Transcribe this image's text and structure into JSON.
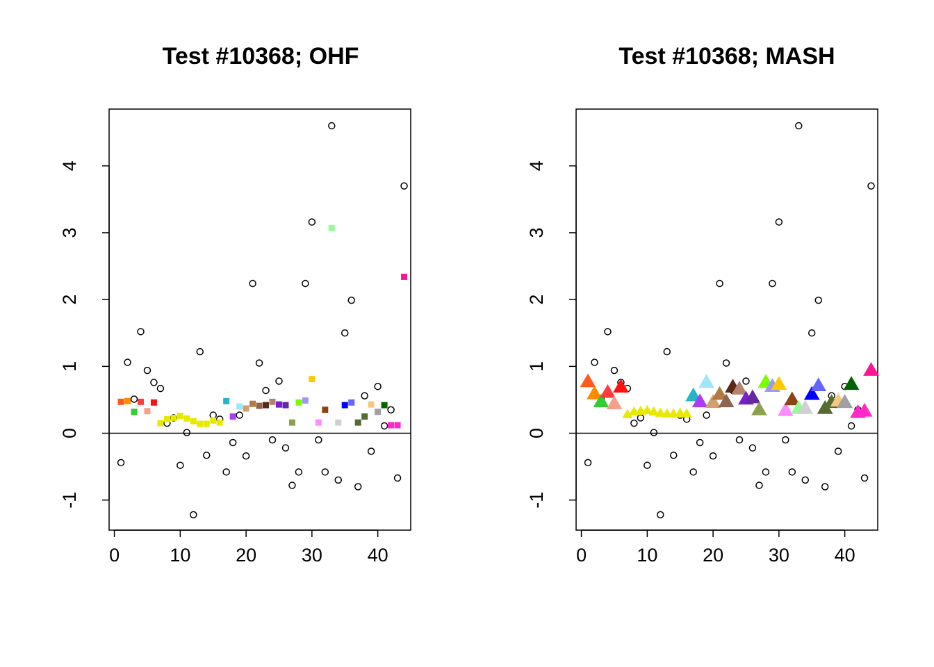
{
  "chart_data": [
    {
      "type": "scatter",
      "title": "Test #10368; OHF",
      "xlabel": "",
      "ylabel": "",
      "xlim": [
        -0.8,
        45
      ],
      "ylim": [
        -1.45,
        4.85
      ],
      "x_ticks": [
        0,
        10,
        20,
        30,
        40
      ],
      "y_ticks": [
        -1,
        0,
        1,
        2,
        3,
        4
      ],
      "x_tick_labels": [
        "0",
        "10",
        "20",
        "30",
        "40"
      ],
      "y_tick_labels": [
        "-1",
        "0",
        "1",
        "2",
        "3",
        "4"
      ],
      "hline": 0,
      "grid": false,
      "series": [
        {
          "marker": "open-circle",
          "x": [
            1,
            2,
            3,
            4,
            5,
            6,
            7,
            8,
            9,
            10,
            11,
            12,
            13,
            14,
            15,
            16,
            17,
            18,
            19,
            20,
            21,
            22,
            23,
            24,
            25,
            26,
            27,
            28,
            29,
            30,
            31,
            32,
            33,
            34,
            35,
            36,
            37,
            38,
            39,
            40,
            41,
            42,
            43,
            44
          ],
          "values": [
            -0.44,
            1.06,
            0.51,
            1.52,
            0.94,
            0.76,
            0.67,
            0.15,
            0.23,
            -0.48,
            0.01,
            -1.22,
            1.22,
            -0.33,
            0.27,
            0.21,
            -0.58,
            -0.14,
            0.27,
            -0.34,
            2.24,
            1.05,
            0.64,
            -0.1,
            0.78,
            -0.22,
            -0.78,
            -0.58,
            2.24,
            3.16,
            -0.1,
            -0.58,
            4.6,
            -0.7,
            1.5,
            1.99,
            -0.8,
            0.56,
            -0.27,
            0.7,
            0.11,
            0.35,
            -0.67,
            3.7
          ]
        },
        {
          "marker": "filled-square",
          "x": [
            1,
            2,
            3,
            4,
            5,
            6,
            7,
            8,
            9,
            10,
            11,
            12,
            13,
            14,
            15,
            16,
            17,
            18,
            19,
            20,
            21,
            22,
            23,
            24,
            25,
            26,
            27,
            28,
            29,
            30,
            31,
            32,
            33,
            34,
            35,
            36,
            37,
            38,
            39,
            40,
            41,
            42,
            43,
            44
          ],
          "values": [
            0.47,
            0.48,
            0.32,
            0.47,
            0.33,
            0.46,
            0.15,
            0.21,
            0.23,
            0.26,
            0.22,
            0.18,
            0.14,
            0.14,
            0.19,
            0.16,
            0.48,
            0.25,
            0.4,
            0.37,
            0.44,
            0.41,
            0.42,
            0.47,
            0.43,
            0.42,
            0.16,
            0.46,
            0.49,
            0.81,
            0.16,
            0.35,
            3.07,
            0.16,
            0.42,
            0.46,
            0.16,
            0.25,
            0.43,
            0.32,
            0.42,
            0.12,
            0.12,
            2.34
          ],
          "colors": [
            "#FF5A1E",
            "#FF8C00",
            "#32CD32",
            "#FF3C3C",
            "#F4A08A",
            "#FF1010",
            "#E8E800",
            "#E8E800",
            "#E8E800",
            "#E8E800",
            "#E8E800",
            "#E8E800",
            "#E8E800",
            "#E8E800",
            "#E8E800",
            "#E8E800",
            "#26B5C8",
            "#B03CF0",
            "#9EE6FA",
            "#D2A070",
            "#B47A46",
            "#8C6450",
            "#5A2814",
            "#B4826E",
            "#7A1ECF",
            "#6428A0",
            "#8CA050",
            "#7CFC00",
            "#9A9AF0",
            "#FFC800",
            "#FF8CFF",
            "#8B4513",
            "#98FB98",
            "#D0D0D0",
            "#0000FF",
            "#6464FF",
            "#556B2F",
            "#556B2F",
            "#F5C882",
            "#A0A0A0",
            "#006400",
            "#FF28C8",
            "#FF28C8",
            "#FF1493"
          ]
        }
      ]
    },
    {
      "type": "scatter",
      "title": "Test #10368; MASH",
      "xlabel": "",
      "ylabel": "",
      "xlim": [
        -0.8,
        45
      ],
      "ylim": [
        -1.45,
        4.85
      ],
      "x_ticks": [
        0,
        10,
        20,
        30,
        40
      ],
      "y_ticks": [
        -1,
        0,
        1,
        2,
        3,
        4
      ],
      "x_tick_labels": [
        "0",
        "10",
        "20",
        "30",
        "40"
      ],
      "y_tick_labels": [
        "-1",
        "0",
        "1",
        "2",
        "3",
        "4"
      ],
      "hline": 0,
      "grid": false,
      "series": [
        {
          "marker": "open-circle",
          "x": [
            1,
            2,
            3,
            4,
            5,
            6,
            7,
            8,
            9,
            10,
            11,
            12,
            13,
            14,
            15,
            16,
            17,
            18,
            19,
            20,
            21,
            22,
            23,
            24,
            25,
            26,
            27,
            28,
            29,
            30,
            31,
            32,
            33,
            34,
            35,
            36,
            37,
            38,
            39,
            40,
            41,
            42,
            43,
            44
          ],
          "values": [
            -0.44,
            1.06,
            0.51,
            1.52,
            0.94,
            0.76,
            0.67,
            0.15,
            0.23,
            -0.48,
            0.01,
            -1.22,
            1.22,
            -0.33,
            0.27,
            0.21,
            -0.58,
            -0.14,
            0.27,
            -0.34,
            2.24,
            1.05,
            0.64,
            -0.1,
            0.78,
            -0.22,
            -0.78,
            -0.58,
            2.24,
            3.16,
            -0.1,
            -0.58,
            4.6,
            -0.7,
            1.5,
            1.99,
            -0.8,
            0.56,
            -0.27,
            0.7,
            0.11,
            0.35,
            -0.67,
            3.7
          ]
        },
        {
          "marker": "filled-triangle",
          "x": [
            1,
            2,
            3,
            4,
            5,
            6,
            7,
            8,
            9,
            10,
            11,
            12,
            13,
            14,
            15,
            16,
            17,
            18,
            19,
            20,
            21,
            22,
            23,
            24,
            25,
            26,
            27,
            28,
            29,
            30,
            31,
            32,
            33,
            34,
            35,
            36,
            37,
            38,
            39,
            40,
            41,
            42,
            43,
            44
          ],
          "values": [
            0.77,
            0.59,
            0.47,
            0.61,
            0.44,
            0.69,
            0.28,
            0.32,
            0.33,
            0.34,
            0.32,
            0.3,
            0.29,
            0.29,
            0.3,
            0.29,
            0.56,
            0.47,
            0.76,
            0.46,
            0.58,
            0.47,
            0.69,
            0.66,
            0.51,
            0.53,
            0.35,
            0.76,
            0.7,
            0.73,
            0.34,
            0.5,
            0.37,
            0.37,
            0.58,
            0.71,
            0.37,
            0.46,
            0.48,
            0.46,
            0.73,
            0.31,
            0.33,
            0.94
          ],
          "colors": [
            "#FF5A1E",
            "#FF8C00",
            "#32CD32",
            "#FF3C3C",
            "#F4A08A",
            "#FF1010",
            "#E8E800",
            "#E8E800",
            "#E8E800",
            "#E8E800",
            "#E8E800",
            "#E8E800",
            "#E8E800",
            "#E8E800",
            "#E8E800",
            "#E8E800",
            "#26B5C8",
            "#B03CF0",
            "#9EE6FA",
            "#D2A070",
            "#B47A46",
            "#8C6450",
            "#5A2814",
            "#B4826E",
            "#7A1ECF",
            "#6428A0",
            "#8CA050",
            "#7CFC00",
            "#9A9AF0",
            "#FFC800",
            "#FF8CFF",
            "#8B4513",
            "#98FB98",
            "#D0D0D0",
            "#0000FF",
            "#6464FF",
            "#556B2F",
            "#556B2F",
            "#F5C882",
            "#A0A0A0",
            "#006400",
            "#FF28C8",
            "#FF28C8",
            "#FF1493"
          ]
        }
      ]
    }
  ]
}
